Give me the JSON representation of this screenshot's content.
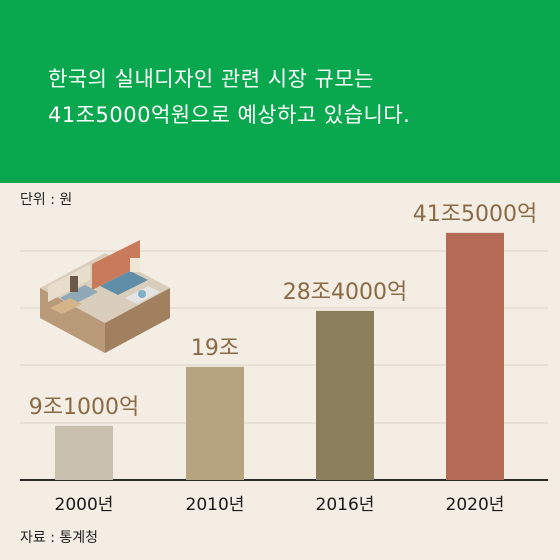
{
  "banner": {
    "line1": "한국의 실내디자인 관련 시장 규모는",
    "line2": "41조5000억원으로 예상하고 있습니다."
  },
  "unit_label": "단위 : 원",
  "source_label": "자료 : 통계청",
  "colors": {
    "banner": "#0aa84e",
    "background": "#f3ede4",
    "label_text": "#8a6a45",
    "bars": [
      "#c8bfae",
      "#b5a47f",
      "#8a7f5a",
      "#b56a55"
    ]
  },
  "chart_data": {
    "type": "bar",
    "categories": [
      "2000년",
      "2010년",
      "2016년",
      "2020년"
    ],
    "values": [
      9.1,
      19,
      28.4,
      41.5
    ],
    "data_labels": [
      "9조1000억",
      "19조",
      "28조4000억",
      "41조5000억"
    ],
    "title": "",
    "xlabel": "",
    "ylabel": "",
    "ylim": [
      0,
      45
    ],
    "grid": true
  }
}
